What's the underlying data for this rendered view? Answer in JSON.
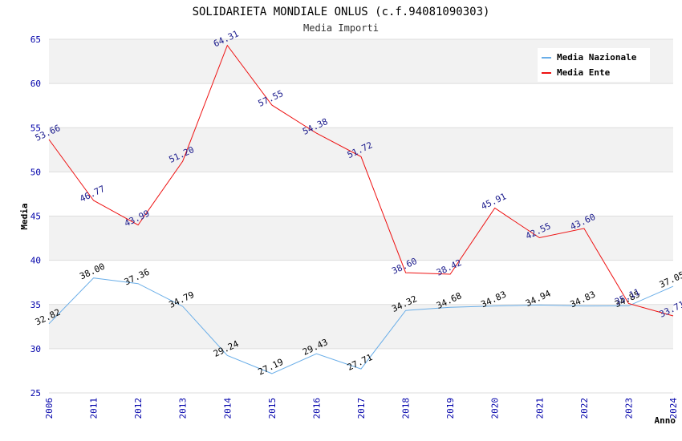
{
  "chart_data": {
    "type": "line",
    "title": "SOLIDARIETA MONDIALE ONLUS (c.f.94081090303)",
    "subtitle": "Media Importi",
    "xlabel": "Anno",
    "ylabel": "Media",
    "ylim": [
      25,
      65
    ],
    "yticks": [
      25,
      30,
      35,
      40,
      45,
      50,
      55,
      60,
      65
    ],
    "grid": "horizontal bands",
    "legend_position": "top-right",
    "categories": [
      "2006",
      "2011",
      "2012",
      "2013",
      "2014",
      "2015",
      "2016",
      "2017",
      "2018",
      "2019",
      "2020",
      "2021",
      "2022",
      "2023",
      "2024"
    ],
    "series": [
      {
        "name": "Media Nazionale",
        "color": "#6aaee8",
        "values": [
          32.82,
          38.0,
          37.36,
          34.79,
          29.24,
          27.19,
          29.43,
          27.71,
          34.32,
          34.68,
          34.83,
          34.94,
          34.83,
          34.85,
          37.05
        ],
        "labels": [
          "32.82",
          "38.00",
          "37.36",
          "34.79",
          "29.24",
          "27.19",
          "29.43",
          "27.71",
          "34.32",
          "34.68",
          "34.83",
          "34.94",
          "34.83",
          "34.85",
          "37.05"
        ]
      },
      {
        "name": "Media Ente",
        "color": "#ee1111",
        "values": [
          53.66,
          46.77,
          43.99,
          51.2,
          64.31,
          57.55,
          54.38,
          51.72,
          38.6,
          38.42,
          45.91,
          42.55,
          43.6,
          35.11,
          33.71
        ],
        "labels": [
          "53.66",
          "46.77",
          "43.99",
          "51.20",
          "64.31",
          "57.55",
          "54.38",
          "51.72",
          "38.60",
          "38.42",
          "45.91",
          "42.55",
          "43.60",
          "35.11",
          "33.71"
        ]
      }
    ]
  }
}
